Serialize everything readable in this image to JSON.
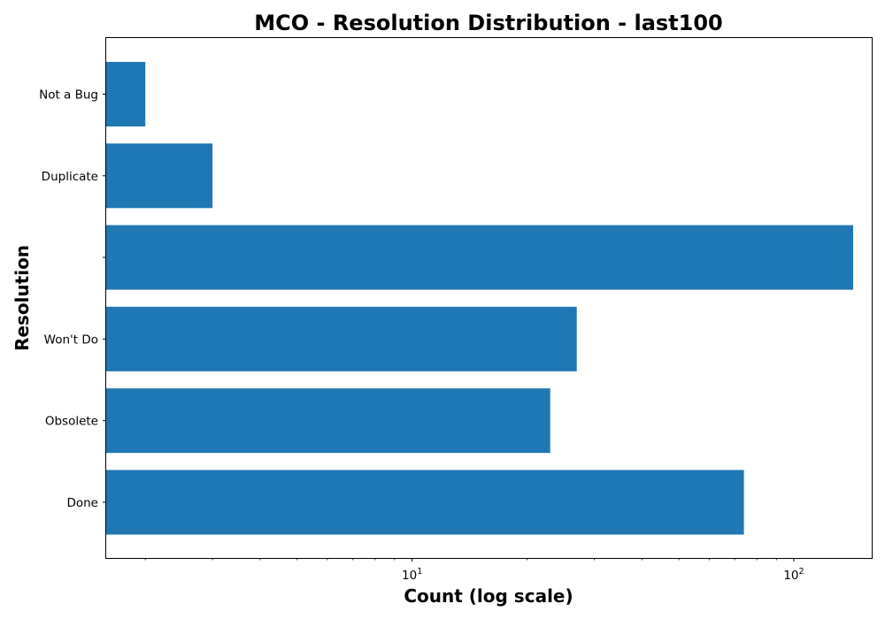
{
  "chart_data": {
    "type": "bar",
    "orientation": "horizontal",
    "title": "MCO - Resolution Distribution - last100",
    "xlabel": "Count (log scale)",
    "ylabel": "Resolution",
    "x_scale": "log",
    "xlim": [
      1.58,
      160
    ],
    "x_tick_labels": [
      {
        "value": 10,
        "base": "10",
        "exp": "1"
      },
      {
        "value": 100,
        "base": "10",
        "exp": "2"
      }
    ],
    "categories": [
      "Done",
      "Obsolete",
      "Won't Do",
      "",
      "Duplicate",
      "Not a Bug"
    ],
    "values": [
      74,
      23,
      27,
      143,
      3,
      2
    ],
    "colors": {
      "bar": "#1f77b4"
    },
    "grid": false
  }
}
